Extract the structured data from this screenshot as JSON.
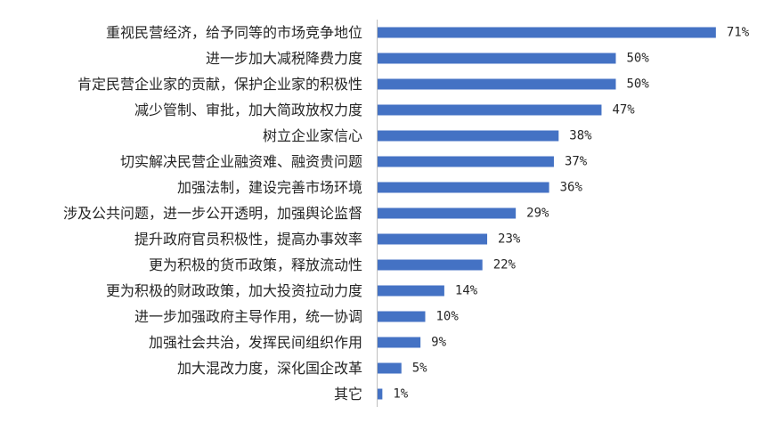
{
  "chart_data": {
    "type": "bar",
    "orientation": "horizontal",
    "title": "",
    "xlabel": "",
    "ylabel": "",
    "xlim": [
      0,
      75
    ],
    "grid": false,
    "legend": "none",
    "color": "#4472C4",
    "value_suffix": "%",
    "categories": [
      "重视民营经济，给予同等的市场竞争地位",
      "进一步加大减税降费力度",
      "肯定民营企业家的贡献，保护企业家的积极性",
      "减少管制、审批，加大简政放权力度",
      "树立企业家信心",
      "切实解决民营企业融资难、融资贵问题",
      "加强法制，建设完善市场环境",
      "涉及公共问题，进一步公开透明，加强舆论监督",
      "提升政府官员积极性，提高办事效率",
      "更为积极的货币政策，释放流动性",
      "更为积极的财政政策，加大投资拉动力度",
      "进一步加强政府主导作用，统一协调",
      "加强社会共治，发挥民间组织作用",
      "加大混改力度，深化国企改革",
      "其它"
    ],
    "values": [
      71,
      50,
      50,
      47,
      38,
      37,
      36,
      29,
      23,
      22,
      14,
      10,
      9,
      5,
      1
    ]
  }
}
